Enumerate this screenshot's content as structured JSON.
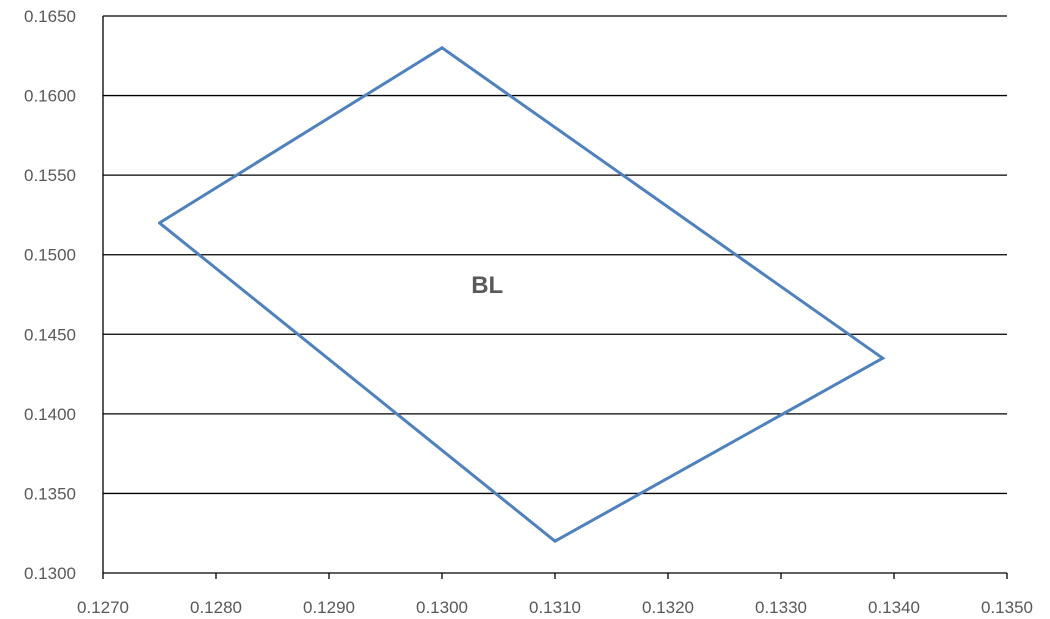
{
  "chart_data": {
    "type": "scatter",
    "title": "",
    "xlabel": "",
    "ylabel": "",
    "xlim": [
      0.127,
      0.135
    ],
    "ylim": [
      0.13,
      0.165
    ],
    "x_ticks": [
      "0.1270",
      "0.1280",
      "0.1290",
      "0.1300",
      "0.1310",
      "0.1320",
      "0.1330",
      "0.1340",
      "0.1350"
    ],
    "y_ticks": [
      "0.1300",
      "0.1350",
      "0.1400",
      "0.1450",
      "0.1500",
      "0.1550",
      "0.1600",
      "0.1650"
    ],
    "grid": "horizontal",
    "legend": "none",
    "series": [
      {
        "color": "#4f81bd",
        "x": [
          0.1275,
          0.13,
          0.1339,
          0.131,
          0.1275
        ],
        "y": [
          0.152,
          0.163,
          0.1435,
          0.132,
          0.152
        ]
      }
    ],
    "annotations": [
      {
        "text": "BL",
        "x": 0.1304,
        "y": 0.1476
      }
    ]
  }
}
